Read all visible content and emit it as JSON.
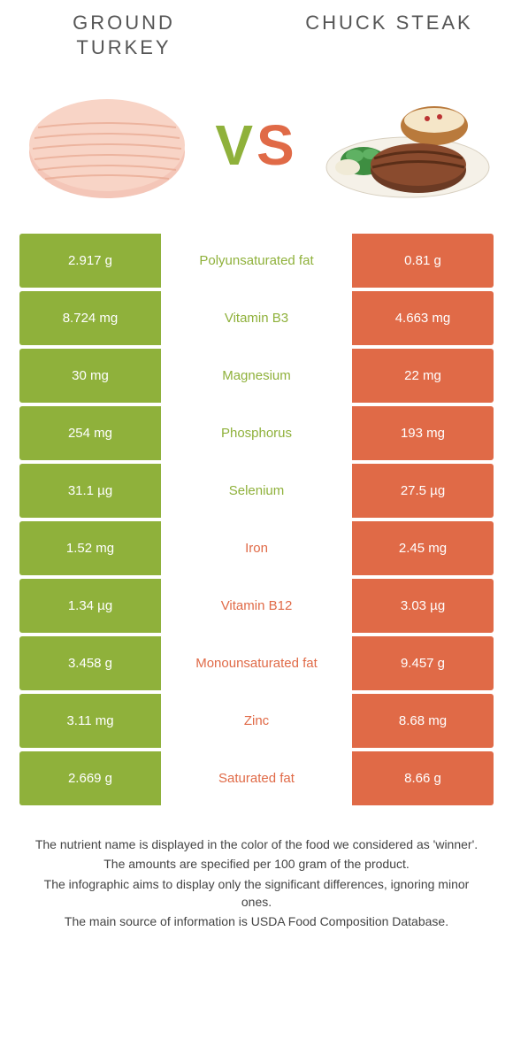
{
  "colors": {
    "left": "#8fb13b",
    "right": "#e06a47",
    "left_text": "#8fb13b",
    "right_text": "#e06a47"
  },
  "foods": {
    "left": {
      "name": "GROUND TURKEY"
    },
    "right": {
      "name": "CHUCK STEAK"
    }
  },
  "vs": {
    "v": "V",
    "s": "S"
  },
  "rows": [
    {
      "left": "2.917 g",
      "label": "Polyunsaturated fat",
      "right": "0.81 g",
      "winner": "left"
    },
    {
      "left": "8.724 mg",
      "label": "Vitamin B3",
      "right": "4.663 mg",
      "winner": "left"
    },
    {
      "left": "30 mg",
      "label": "Magnesium",
      "right": "22 mg",
      "winner": "left"
    },
    {
      "left": "254 mg",
      "label": "Phosphorus",
      "right": "193 mg",
      "winner": "left"
    },
    {
      "left": "31.1 µg",
      "label": "Selenium",
      "right": "27.5 µg",
      "winner": "left"
    },
    {
      "left": "1.52 mg",
      "label": "Iron",
      "right": "2.45 mg",
      "winner": "right"
    },
    {
      "left": "1.34 µg",
      "label": "Vitamin B12",
      "right": "3.03 µg",
      "winner": "right"
    },
    {
      "left": "3.458 g",
      "label": "Monounsaturated fat",
      "right": "9.457 g",
      "winner": "right"
    },
    {
      "left": "3.11 mg",
      "label": "Zinc",
      "right": "8.68 mg",
      "winner": "right"
    },
    {
      "left": "2.669 g",
      "label": "Saturated fat",
      "right": "8.66 g",
      "winner": "right"
    }
  ],
  "footnotes": [
    "The nutrient name is displayed in the color of the food we considered as 'winner'.",
    "The amounts are specified per 100 gram of the product.",
    "The infographic aims to display only the significant differences, ignoring minor ones.",
    "The main source of information is USDA Food Composition Database."
  ]
}
